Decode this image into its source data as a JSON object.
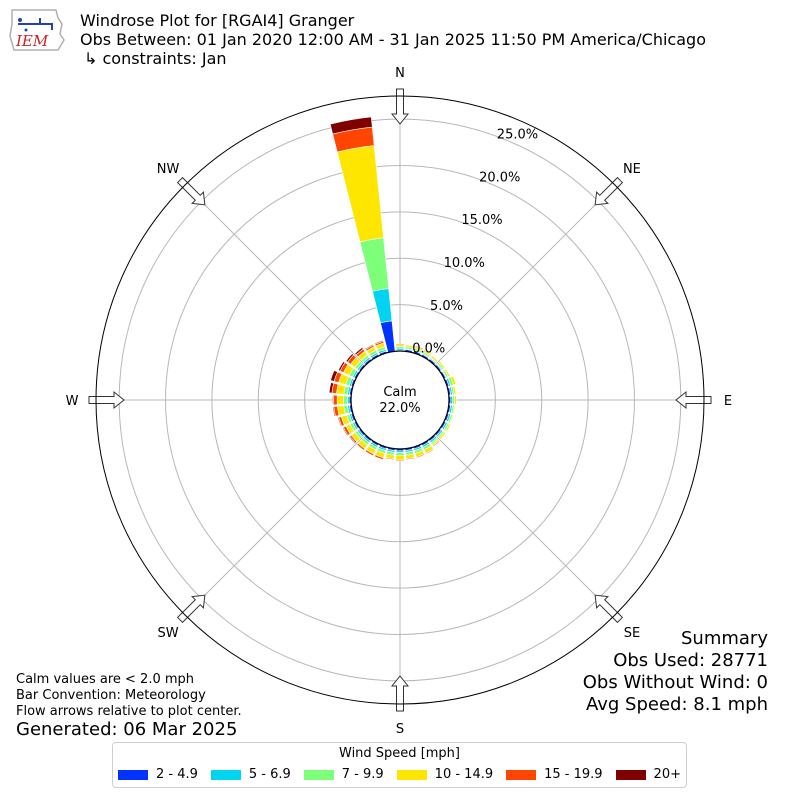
{
  "header": {
    "logo_text": "IEM",
    "title_line1": "Windrose Plot for [RGAI4] Granger",
    "title_line2": "Obs Between: 01 Jan 2020 12:00 AM - 31 Jan 2025 11:50 PM America/Chicago",
    "title_line3": "↳ constraints: Jan"
  },
  "notes": {
    "calm_note": "Calm values are < 2.0 mph",
    "bar_convention": "Bar Convention: Meteorology",
    "flow_note": "Flow arrows relative to plot center.",
    "generated": "Generated: 06 Mar 2025"
  },
  "summary": {
    "heading": "Summary",
    "obs_used": "Obs Used: 28771",
    "obs_without_wind": "Obs Without Wind: 0",
    "avg_speed": "Avg Speed: 8.1 mph"
  },
  "legend": {
    "title": "Wind Speed [mph]",
    "items": [
      {
        "label": "2 - 4.9",
        "color": "#0033ff"
      },
      {
        "label": "5 - 6.9",
        "color": "#00d4f0"
      },
      {
        "label": "7 - 9.9",
        "color": "#7dff7a"
      },
      {
        "label": "10 - 14.9",
        "color": "#ffe600"
      },
      {
        "label": "15 - 19.9",
        "color": "#ff4500"
      },
      {
        "label": "20+",
        "color": "#800000"
      }
    ]
  },
  "chart_data": {
    "type": "windrose",
    "calm_label": "Calm",
    "calm_value": "22.0%",
    "calm_percent": 22.0,
    "radial_ticks": [
      0,
      5,
      10,
      15,
      20,
      25
    ],
    "radial_tick_labels": [
      "0.0%",
      "5.0%",
      "10.0%",
      "15.0%",
      "20.0%",
      "25.0%"
    ],
    "r_max_percent": 27.5,
    "direction_labels": [
      "N",
      "NE",
      "E",
      "SE",
      "S",
      "SW",
      "W",
      "NW"
    ],
    "direction_angles_deg": [
      0,
      45,
      90,
      135,
      180,
      225,
      270,
      315
    ],
    "speed_bins": [
      "2 - 4.9",
      "5 - 6.9",
      "7 - 9.9",
      "10 - 14.9",
      "15 - 19.9",
      "20+"
    ],
    "directions": [
      {
        "deg": 0,
        "values": [
          0.1,
          0.2,
          0.2,
          0.2,
          0.1,
          0.0
        ]
      },
      {
        "deg": 10,
        "values": [
          0.2,
          0.1,
          0.2,
          0.2,
          0.0,
          0.0
        ]
      },
      {
        "deg": 20,
        "values": [
          0.2,
          0.1,
          0.2,
          0.2,
          0.1,
          0.0
        ]
      },
      {
        "deg": 30,
        "values": [
          0.2,
          0.1,
          0.2,
          0.2,
          0.1,
          0.0
        ]
      },
      {
        "deg": 40,
        "values": [
          0.2,
          0.1,
          0.1,
          0.2,
          0.0,
          0.0
        ]
      },
      {
        "deg": 50,
        "values": [
          0.2,
          0.1,
          0.2,
          0.2,
          0.0,
          0.0
        ]
      },
      {
        "deg": 60,
        "values": [
          0.2,
          0.1,
          0.2,
          0.2,
          0.0,
          0.0
        ]
      },
      {
        "deg": 70,
        "values": [
          0.2,
          0.2,
          0.3,
          0.3,
          0.0,
          0.0
        ]
      },
      {
        "deg": 80,
        "values": [
          0.2,
          0.2,
          0.2,
          0.2,
          0.0,
          0.0
        ]
      },
      {
        "deg": 90,
        "values": [
          0.2,
          0.2,
          0.2,
          0.2,
          0.0,
          0.0
        ]
      },
      {
        "deg": 100,
        "values": [
          0.2,
          0.2,
          0.2,
          0.1,
          0.0,
          0.0
        ]
      },
      {
        "deg": 110,
        "values": [
          0.2,
          0.2,
          0.2,
          0.1,
          0.0,
          0.0
        ]
      },
      {
        "deg": 120,
        "values": [
          0.2,
          0.2,
          0.2,
          0.2,
          0.0,
          0.0
        ]
      },
      {
        "deg": 130,
        "values": [
          0.2,
          0.2,
          0.2,
          0.2,
          0.0,
          0.0
        ]
      },
      {
        "deg": 140,
        "values": [
          0.2,
          0.2,
          0.2,
          0.2,
          0.1,
          0.0
        ]
      },
      {
        "deg": 150,
        "values": [
          0.2,
          0.2,
          0.3,
          0.4,
          0.1,
          0.0
        ]
      },
      {
        "deg": 160,
        "values": [
          0.2,
          0.2,
          0.3,
          0.4,
          0.1,
          0.0
        ]
      },
      {
        "deg": 170,
        "values": [
          0.2,
          0.2,
          0.3,
          0.4,
          0.1,
          0.0
        ]
      },
      {
        "deg": 180,
        "values": [
          0.2,
          0.2,
          0.3,
          0.5,
          0.1,
          0.0
        ]
      },
      {
        "deg": 190,
        "values": [
          0.2,
          0.2,
          0.3,
          0.4,
          0.1,
          0.0
        ]
      },
      {
        "deg": 200,
        "values": [
          0.2,
          0.2,
          0.3,
          0.5,
          0.2,
          0.0
        ]
      },
      {
        "deg": 210,
        "values": [
          0.2,
          0.2,
          0.3,
          0.5,
          0.2,
          0.0
        ]
      },
      {
        "deg": 220,
        "values": [
          0.2,
          0.2,
          0.3,
          0.5,
          0.2,
          0.0
        ]
      },
      {
        "deg": 230,
        "values": [
          0.2,
          0.2,
          0.3,
          0.5,
          0.2,
          0.1
        ]
      },
      {
        "deg": 240,
        "values": [
          0.2,
          0.2,
          0.3,
          0.5,
          0.3,
          0.1
        ]
      },
      {
        "deg": 250,
        "values": [
          0.2,
          0.2,
          0.3,
          0.6,
          0.3,
          0.1
        ]
      },
      {
        "deg": 260,
        "values": [
          0.2,
          0.2,
          0.4,
          0.7,
          0.4,
          0.1
        ]
      },
      {
        "deg": 270,
        "values": [
          0.2,
          0.2,
          0.4,
          0.7,
          0.4,
          0.1
        ]
      },
      {
        "deg": 280,
        "values": [
          0.2,
          0.2,
          0.4,
          0.8,
          0.5,
          0.3
        ]
      },
      {
        "deg": 290,
        "values": [
          0.2,
          0.2,
          0.4,
          0.8,
          0.5,
          0.4
        ]
      },
      {
        "deg": 300,
        "values": [
          0.2,
          0.2,
          0.4,
          0.7,
          0.4,
          0.2
        ]
      },
      {
        "deg": 310,
        "values": [
          0.2,
          0.2,
          0.3,
          0.6,
          0.4,
          0.2
        ]
      },
      {
        "deg": 320,
        "values": [
          0.2,
          0.2,
          0.3,
          0.5,
          0.3,
          0.2
        ]
      },
      {
        "deg": 330,
        "values": [
          0.2,
          0.2,
          0.3,
          0.4,
          0.2,
          0.1
        ]
      },
      {
        "deg": 340,
        "values": [
          0.2,
          0.2,
          0.3,
          0.4,
          0.2,
          0.1
        ]
      },
      {
        "deg": 350,
        "values": [
          3.3,
          3.5,
          5.5,
          10.0,
          2.0,
          1.1
        ]
      }
    ]
  }
}
